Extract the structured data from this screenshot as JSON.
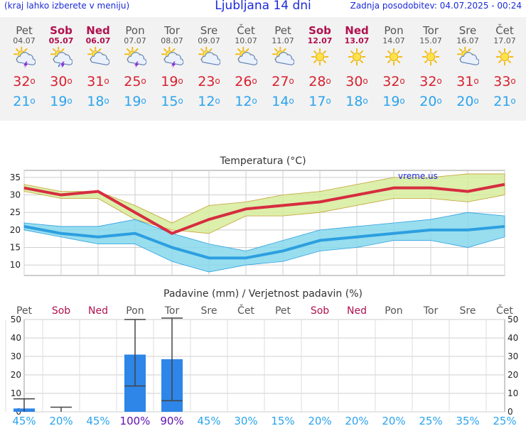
{
  "header": {
    "left": "(kraj lahko izberete v meniju)",
    "title": "Ljubljana 14 dni",
    "right": "Zadnja posodobitev: 04.07.2025 - 00:24"
  },
  "days": [
    {
      "name": "Pet",
      "date": "04.07",
      "weekend": false,
      "icon": "sun-cloud-thunder",
      "tmax": "32",
      "tmin": "21"
    },
    {
      "name": "Sob",
      "date": "05.07",
      "weekend": true,
      "icon": "sun-cloud-rain-thunder",
      "tmax": "30",
      "tmin": "19"
    },
    {
      "name": "Ned",
      "date": "06.07",
      "weekend": true,
      "icon": "sun-cloud",
      "tmax": "31",
      "tmin": "18"
    },
    {
      "name": "Pon",
      "date": "07.07",
      "weekend": false,
      "icon": "sun-cloud-thunder",
      "tmax": "25",
      "tmin": "19"
    },
    {
      "name": "Tor",
      "date": "08.07",
      "weekend": false,
      "icon": "sun-cloud-thunder",
      "tmax": "19",
      "tmin": "15"
    },
    {
      "name": "Sre",
      "date": "09.07",
      "weekend": false,
      "icon": "sun-cloud",
      "tmax": "23",
      "tmin": "12"
    },
    {
      "name": "Čet",
      "date": "10.07",
      "weekend": false,
      "icon": "sun-cloud",
      "tmax": "26",
      "tmin": "12"
    },
    {
      "name": "Pet",
      "date": "11.07",
      "weekend": false,
      "icon": "sun-cloud",
      "tmax": "27",
      "tmin": "14"
    },
    {
      "name": "Sob",
      "date": "12.07",
      "weekend": true,
      "icon": "sun",
      "tmax": "28",
      "tmin": "17"
    },
    {
      "name": "Ned",
      "date": "13.07",
      "weekend": true,
      "icon": "sun",
      "tmax": "30",
      "tmin": "18"
    },
    {
      "name": "Pon",
      "date": "14.07",
      "weekend": false,
      "icon": "sun",
      "tmax": "32",
      "tmin": "19"
    },
    {
      "name": "Tor",
      "date": "15.07",
      "weekend": false,
      "icon": "sun",
      "tmax": "32",
      "tmin": "20"
    },
    {
      "name": "Sre",
      "date": "16.07",
      "weekend": false,
      "icon": "sun-cloud",
      "tmax": "31",
      "tmin": "20"
    },
    {
      "name": "Čet",
      "date": "17.07",
      "weekend": false,
      "icon": "sun",
      "tmax": "33",
      "tmin": "21"
    }
  ],
  "colors": {
    "weekend": "#b0104e",
    "weekday": "#555555",
    "tmax": "#d8202e",
    "tmin": "#2aa4ee",
    "max_band": "#d6ec9c",
    "min_band": "#86d8ec",
    "max_line": "#d62d40",
    "min_line": "#2d9fe0",
    "bar": "#2d86e8",
    "prob": "#2aa4ee",
    "prob_high": "#6010b0"
  },
  "chart_data": [
    {
      "type": "line",
      "title": "Temperatura (°C)",
      "watermark": "vreme.us",
      "x": [
        "04.07",
        "05.07",
        "06.07",
        "07.07",
        "08.07",
        "09.07",
        "10.07",
        "11.07",
        "12.07",
        "13.07",
        "14.07",
        "15.07",
        "16.07",
        "17.07"
      ],
      "ylim": [
        7,
        37
      ],
      "yticks": [
        10,
        15,
        20,
        25,
        30,
        35
      ],
      "grid": true,
      "series": [
        {
          "values": [
            32,
            30,
            31,
            25,
            19,
            23,
            26,
            27,
            28,
            30,
            32,
            32,
            31,
            33
          ],
          "band_low": [
            31,
            29,
            29,
            23,
            20,
            19,
            24,
            24,
            25,
            27,
            29,
            29,
            28,
            30
          ],
          "band_high": [
            33,
            31,
            31,
            27,
            22,
            27,
            28,
            30,
            31,
            33,
            35,
            35,
            36,
            36
          ]
        },
        {
          "values": [
            21,
            19,
            18,
            19,
            15,
            12,
            12,
            14,
            17,
            18,
            19,
            20,
            20,
            21
          ],
          "band_low": [
            20,
            18,
            16,
            16,
            11,
            8,
            10,
            11,
            14,
            15,
            17,
            17,
            15,
            18
          ],
          "band_high": [
            22,
            21,
            21,
            23,
            19,
            16,
            14,
            17,
            20,
            21,
            22,
            23,
            25,
            24
          ]
        }
      ]
    },
    {
      "type": "bar",
      "title": "Padavine (mm) / Verjetnost padavin (%)",
      "categories": [
        "Pet",
        "Sob",
        "Ned",
        "Pon",
        "Tor",
        "Sre",
        "Čet",
        "Pet",
        "Sob",
        "Ned",
        "Pon",
        "Tor",
        "Sre",
        "Čet"
      ],
      "ylim": [
        0,
        50
      ],
      "yticks": [
        0,
        10,
        20,
        30,
        40,
        50
      ],
      "values": [
        1.8,
        0,
        0,
        31,
        28.5,
        0,
        0,
        0,
        0,
        0,
        0,
        0,
        0,
        0
      ],
      "range_low": [
        0,
        0,
        null,
        14,
        6,
        null,
        null,
        null,
        null,
        null,
        null,
        null,
        null,
        null
      ],
      "range_high": [
        7,
        2.5,
        null,
        50,
        52,
        null,
        null,
        null,
        null,
        null,
        null,
        null,
        null,
        null
      ],
      "probability": [
        "45%",
        "20%",
        "45%",
        "100%",
        "90%",
        "45%",
        "30%",
        "15%",
        "20%",
        "20%",
        "20%",
        "25%",
        "35%",
        "25%"
      ]
    }
  ]
}
